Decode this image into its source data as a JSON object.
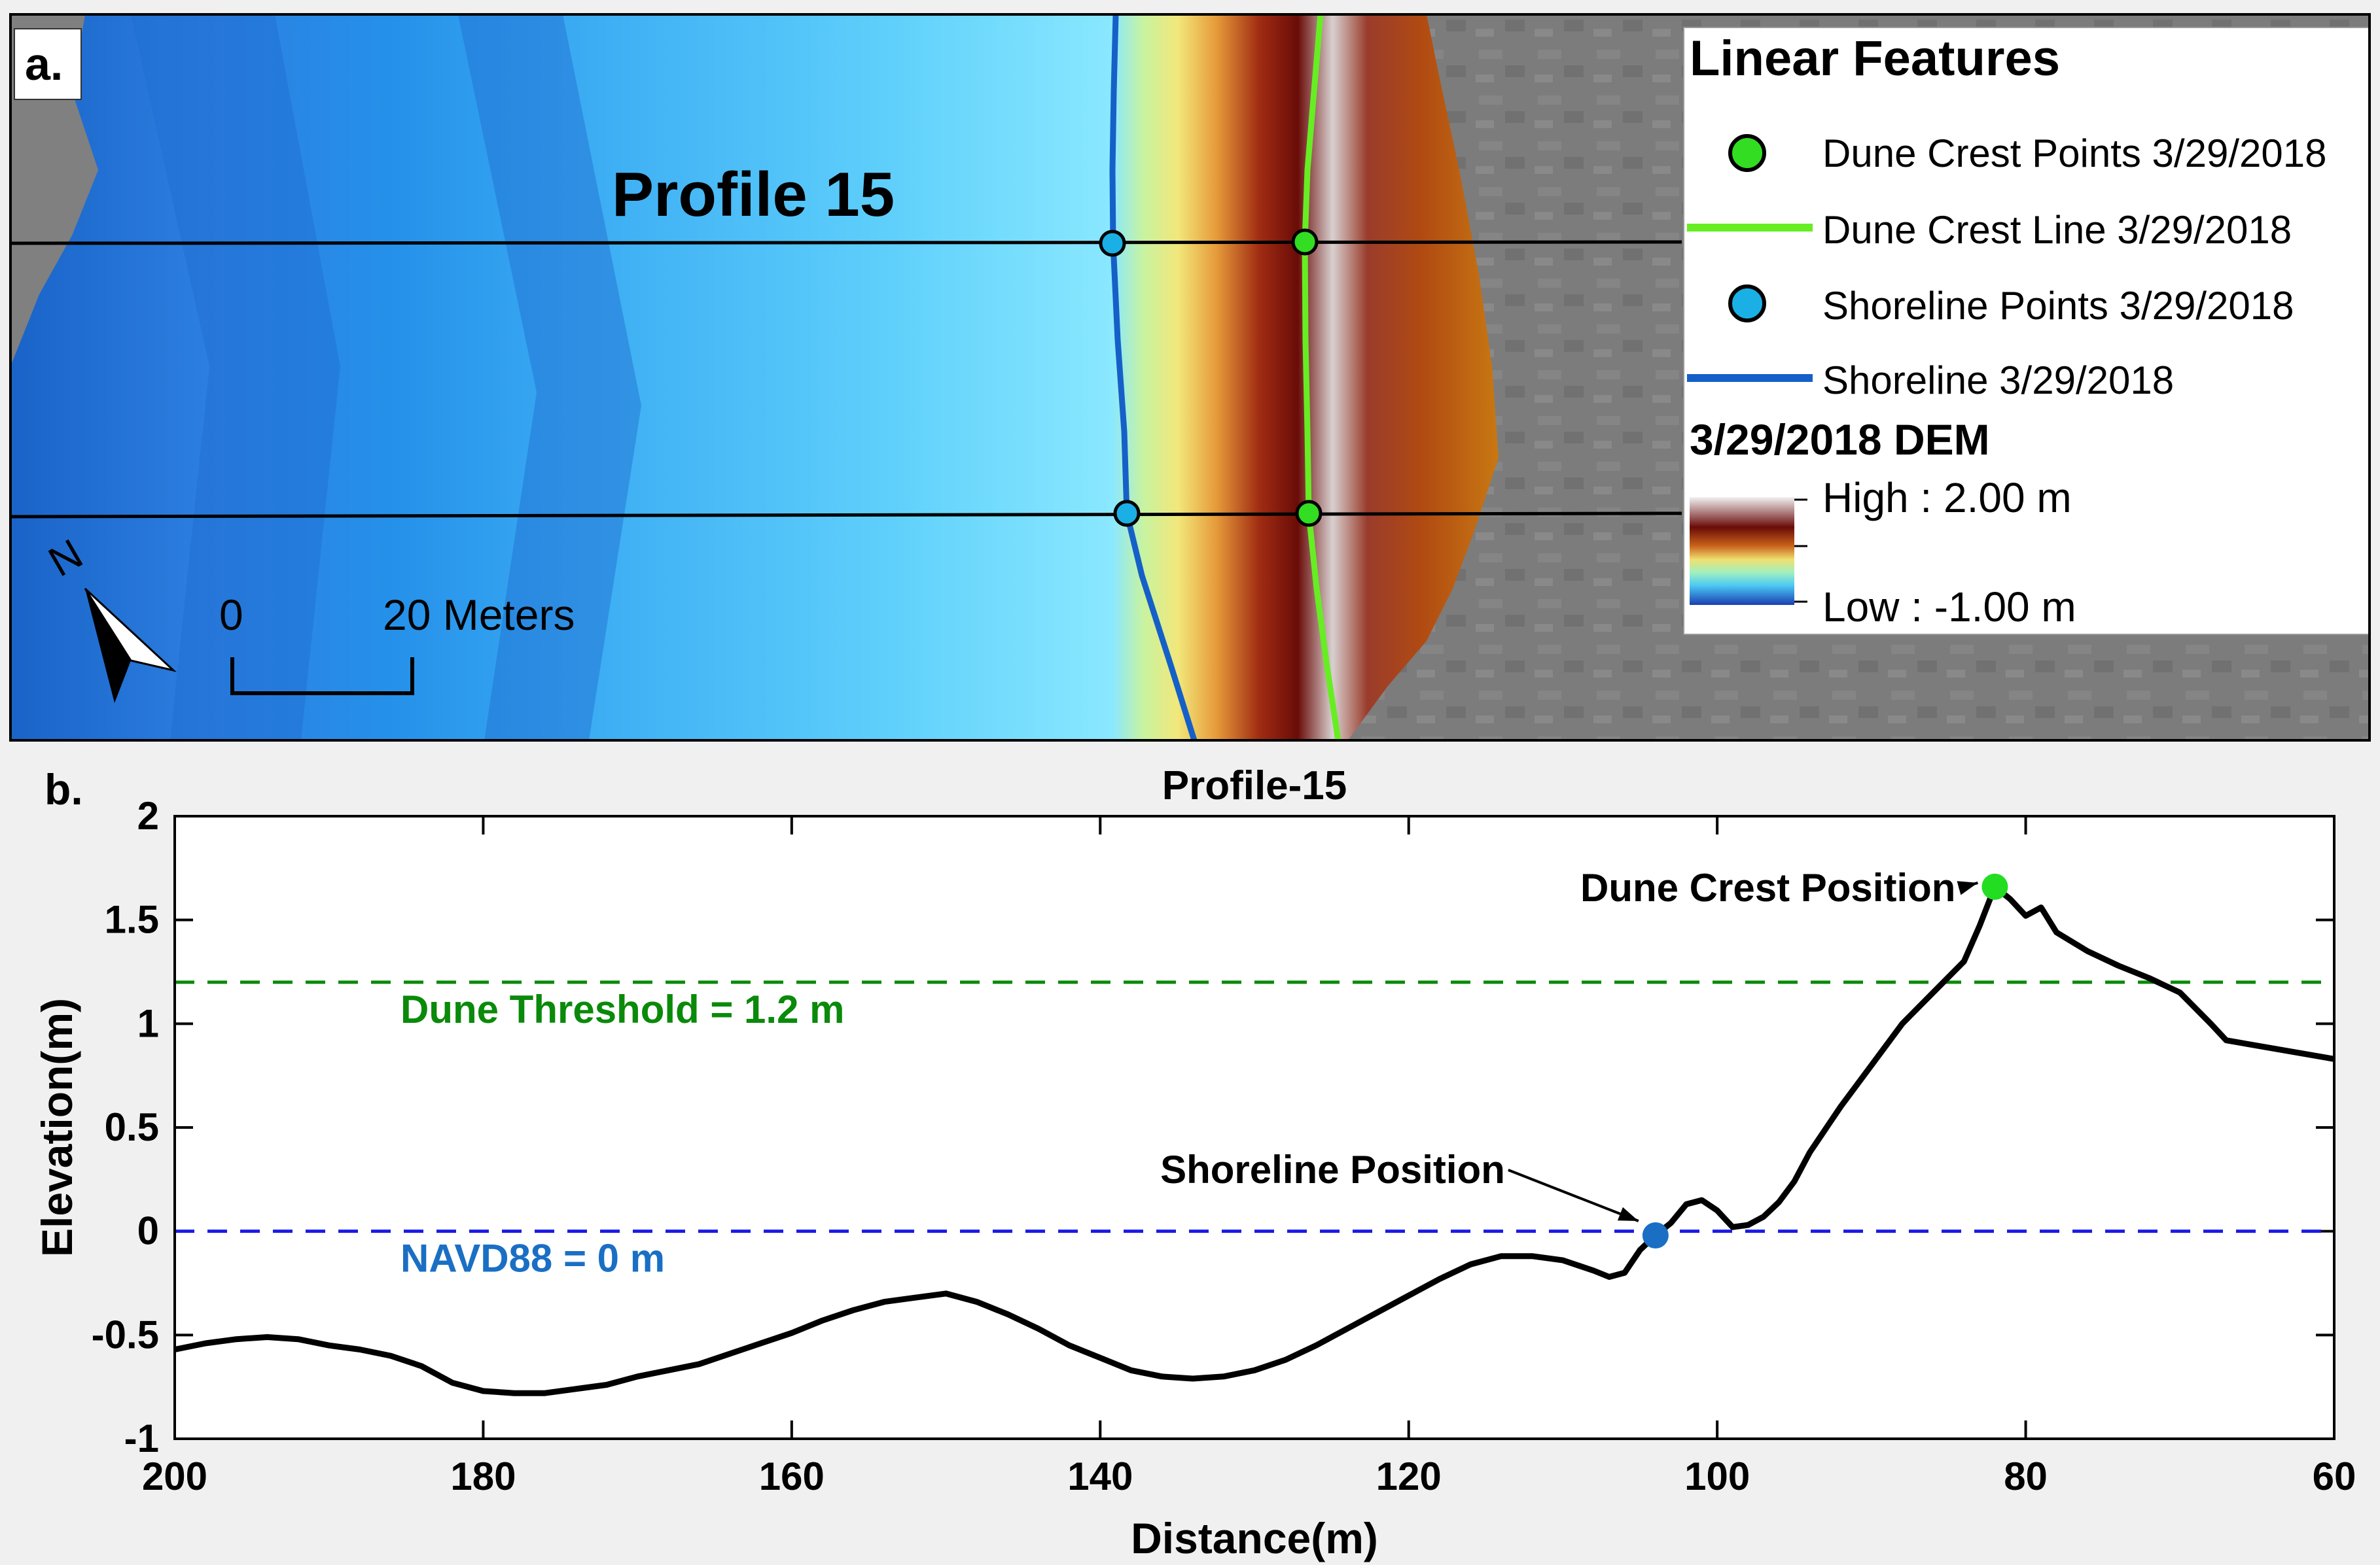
{
  "panel_a": {
    "label": "a.",
    "profile_label": "Profile 15",
    "north_letter": "N",
    "scale": {
      "start": "0",
      "end": "20 Meters"
    },
    "legend": {
      "title": "Linear Features",
      "items": [
        {
          "label": "Dune Crest Points 3/29/2018",
          "kind": "point",
          "color": "#33dd22"
        },
        {
          "label": "Dune Crest Line 3/29/2018",
          "kind": "line",
          "color": "#66ee22"
        },
        {
          "label": "Shoreline Points 3/29/2018",
          "kind": "point",
          "color": "#1ab0e6"
        },
        {
          "label": "Shoreline 3/29/2018",
          "kind": "line",
          "color": "#1560c8"
        }
      ],
      "dem_title": "3/29/2018 DEM",
      "dem_high": "High : 2.00 m",
      "dem_low": "Low : -1.00 m"
    }
  },
  "panel_b": {
    "label": "b."
  },
  "chart_data": {
    "type": "line",
    "title": "Profile-15",
    "xlabel": "Distance(m)",
    "ylabel": "Elevation(m)",
    "xlim": [
      200,
      60
    ],
    "ylim": [
      -1,
      2
    ],
    "xticks": [
      200,
      180,
      160,
      140,
      120,
      100,
      80,
      60
    ],
    "yticks": [
      2,
      1.5,
      1,
      0.5,
      0,
      -0.5,
      -1
    ],
    "ytick_labels": [
      "2",
      "1.5",
      "1",
      "0.5",
      "0",
      "-0.5",
      "-1"
    ],
    "series": [
      {
        "name": "Profile 15",
        "color": "#000000",
        "x": [
          200,
          198,
          196,
          194,
          192,
          190,
          188,
          186,
          184,
          182,
          180,
          178,
          176,
          174,
          172,
          170,
          168,
          166,
          164,
          162,
          160,
          158,
          156,
          154,
          152,
          150,
          148,
          146,
          144,
          142,
          140,
          138,
          136,
          134,
          132,
          130,
          128,
          126,
          124,
          122,
          120,
          118,
          116,
          114,
          112,
          110,
          108,
          107,
          106,
          105,
          104,
          103,
          102,
          101,
          100,
          99,
          98,
          97,
          96,
          95,
          94,
          92,
          90,
          88,
          86,
          84,
          83,
          82,
          81,
          80,
          79,
          78,
          76,
          74,
          72,
          70,
          68,
          67,
          60
        ],
        "y": [
          -0.57,
          -0.54,
          -0.52,
          -0.51,
          -0.52,
          -0.55,
          -0.57,
          -0.6,
          -0.65,
          -0.73,
          -0.77,
          -0.78,
          -0.78,
          -0.76,
          -0.74,
          -0.7,
          -0.67,
          -0.64,
          -0.59,
          -0.54,
          -0.49,
          -0.43,
          -0.38,
          -0.34,
          -0.32,
          -0.3,
          -0.34,
          -0.4,
          -0.47,
          -0.55,
          -0.61,
          -0.67,
          -0.7,
          -0.71,
          -0.7,
          -0.67,
          -0.62,
          -0.55,
          -0.47,
          -0.39,
          -0.31,
          -0.23,
          -0.16,
          -0.12,
          -0.12,
          -0.14,
          -0.19,
          -0.22,
          -0.2,
          -0.09,
          -0.02,
          0.04,
          0.13,
          0.15,
          0.1,
          0.02,
          0.03,
          0.07,
          0.14,
          0.24,
          0.38,
          0.6,
          0.8,
          1.0,
          1.15,
          1.3,
          1.47,
          1.66,
          1.6,
          1.52,
          1.56,
          1.44,
          1.35,
          1.28,
          1.22,
          1.15,
          1.0,
          0.92,
          0.83
        ]
      }
    ],
    "thresholds": [
      {
        "label": "Dune Threshold = 1.2 m",
        "y": 1.2,
        "color": "#0a8a0a"
      },
      {
        "label": "NAVD88 = 0 m",
        "y": 0,
        "color": "#1a1ae6"
      }
    ],
    "markers": [
      {
        "label": "Dune Crest Position",
        "x": 82,
        "y": 1.66,
        "color": "#22dd22"
      },
      {
        "label": "Shoreline Position",
        "x": 104,
        "y": -0.02,
        "color": "#1a6fc4"
      }
    ]
  }
}
